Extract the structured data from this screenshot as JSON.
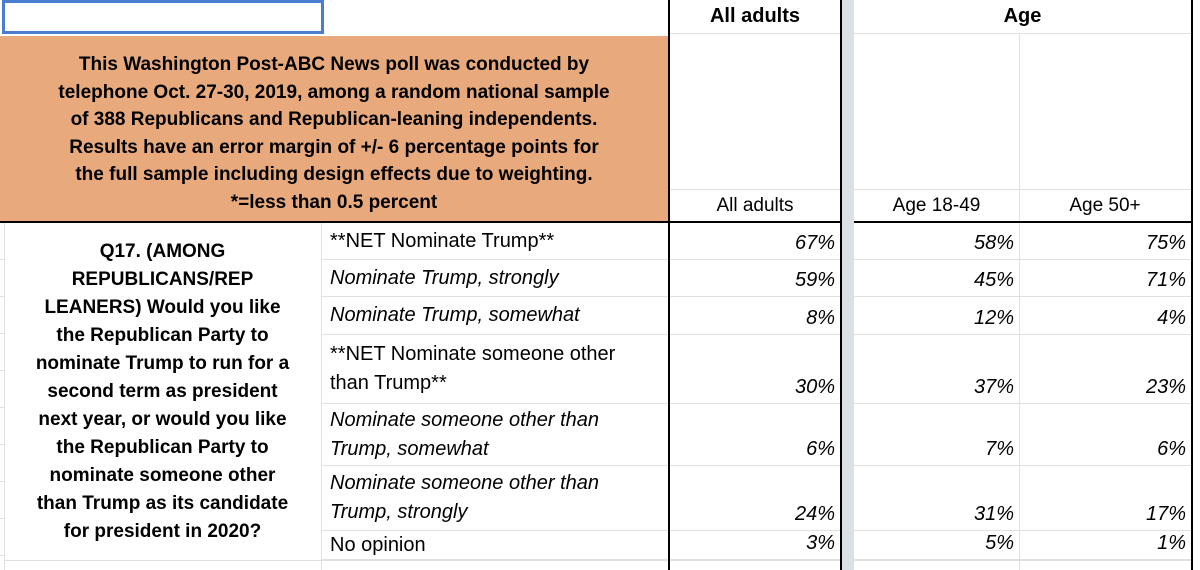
{
  "selected_cell": {
    "value": ""
  },
  "note": {
    "text": "This Washington Post-ABC News poll was conducted by\ntelephone Oct. 27-30, 2019, among a random national sample\nof 388 Republicans and Republican-leaning independents.\nResults have an error margin of +/- 6 percentage points for\nthe full sample including design effects due to weighting.\n*=less than 0.5 percent"
  },
  "question": {
    "text": "Q17. (AMONG\nREPUBLICANS/REP\nLEANERS) Would you like\nthe Republican Party to\nnominate Trump to run for a\nsecond term as president\nnext year, or would you like\nthe Republican Party to\nnominate someone other\nthan Trump as its candidate\nfor president in 2020?"
  },
  "columns": {
    "group_headers": [
      "All adults",
      "Age"
    ],
    "sub_headers": [
      "All adults",
      "Age 18-49",
      "Age 50+"
    ]
  },
  "table": {
    "rows": [
      {
        "label": "**NET Nominate Trump**",
        "values": [
          "67%",
          "58%",
          "75%"
        ]
      },
      {
        "label": "Nominate Trump, strongly",
        "values": [
          "59%",
          "45%",
          "71%"
        ]
      },
      {
        "label": "Nominate Trump, somewhat",
        "values": [
          "8%",
          "12%",
          "4%"
        ]
      },
      {
        "label": "**NET Nominate someone other\nthan Trump**",
        "values": [
          "30%",
          "37%",
          "23%"
        ]
      },
      {
        "label": "Nominate someone other than\nTrump, somewhat",
        "values": [
          "6%",
          "7%",
          "6%"
        ]
      },
      {
        "label": "Nominate someone other than\nTrump, strongly",
        "values": [
          "24%",
          "31%",
          "17%"
        ]
      },
      {
        "label": "No opinion",
        "values": [
          "3%",
          "5%",
          "1%"
        ]
      }
    ]
  },
  "colors": {
    "note_bg": "#e8aa7c",
    "selection_border": "#4a7dd0",
    "gutter": "#dcdfe4",
    "black_border": "#000000",
    "gridline": "#e0e0e0"
  }
}
